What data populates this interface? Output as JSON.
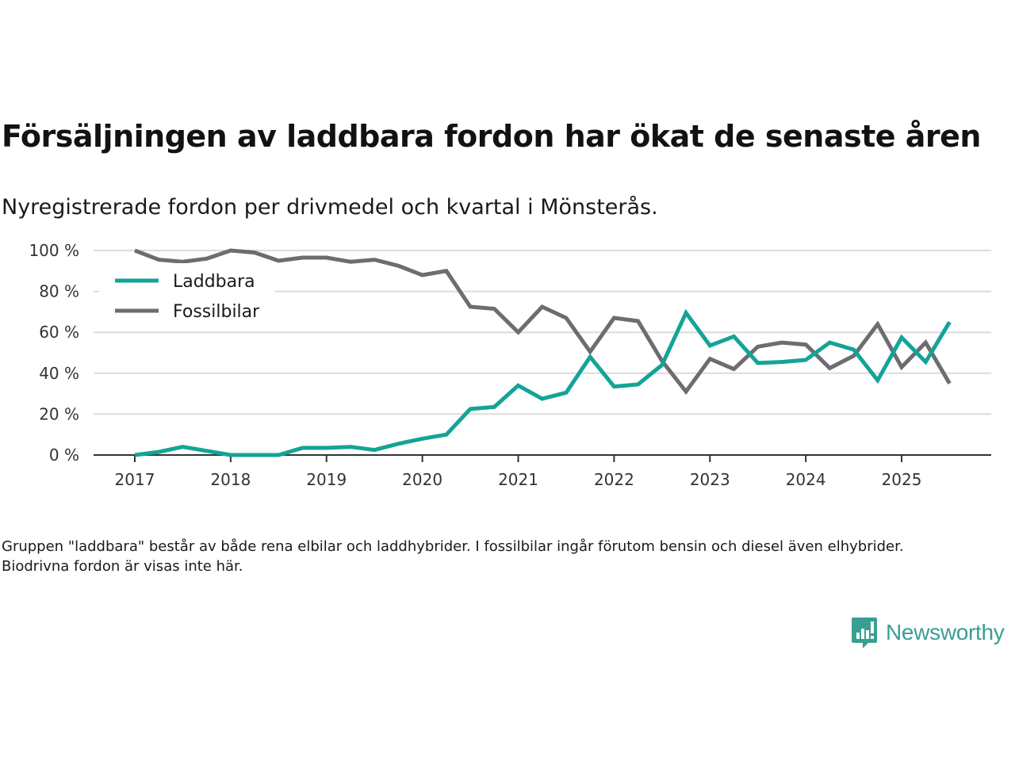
{
  "header": {
    "title": "Försäljningen av laddbara fordon har ökat de senaste åren",
    "subtitle": "Nyregistrerade fordon per drivmedel och kvartal i Mönsterås."
  },
  "footnote": "Gruppen \"laddbara\" består av både rena elbilar och laddhybrider. I fossilbilar ingår förutom bensin och diesel även elhybrider. Biodrivna fordon är visas inte här.",
  "logo": {
    "text": "Newsworthy",
    "color": "#3a9e92",
    "icon": "bar-chart-speech-bubble-icon"
  },
  "chart_data": {
    "type": "line",
    "title": "Försäljningen av laddbara fordon har ökat de senaste åren",
    "subtitle": "Nyregistrerade fordon per drivmedel och kvartal i Mönsterås.",
    "xlabel": "",
    "ylabel": "",
    "x": [
      "2017-Q1",
      "2017-Q2",
      "2017-Q3",
      "2017-Q4",
      "2018-Q1",
      "2018-Q2",
      "2018-Q3",
      "2018-Q4",
      "2019-Q1",
      "2019-Q2",
      "2019-Q3",
      "2019-Q4",
      "2020-Q1",
      "2020-Q2",
      "2020-Q3",
      "2020-Q4",
      "2021-Q1",
      "2021-Q2",
      "2021-Q3",
      "2021-Q4",
      "2022-Q1",
      "2022-Q2",
      "2022-Q3",
      "2022-Q4",
      "2023-Q1",
      "2023-Q2",
      "2023-Q3",
      "2023-Q4",
      "2024-Q1",
      "2024-Q2",
      "2024-Q3",
      "2024-Q4",
      "2025-Q1",
      "2025-Q2",
      "2025-Q3"
    ],
    "x_ticks": [
      "2017",
      "2018",
      "2019",
      "2020",
      "2021",
      "2022",
      "2023",
      "2024",
      "2025"
    ],
    "x_range": [
      "2016-Q3",
      "2026-Q2"
    ],
    "y_ticks": [
      "0 %",
      "20 %",
      "40 %",
      "60 %",
      "80 %",
      "100 %"
    ],
    "ylim": [
      0,
      100
    ],
    "grid": true,
    "legend_position": "top-left",
    "series": [
      {
        "name": "Laddbara",
        "color": "#13a497",
        "values": [
          0,
          1.5,
          4,
          2,
          0,
          0,
          0,
          3.5,
          3.5,
          4,
          2.5,
          5.5,
          8,
          10,
          22.5,
          23.5,
          34,
          27.5,
          30.5,
          48,
          33.5,
          34.5,
          44,
          69.5,
          53.5,
          58,
          45,
          45.5,
          46.5,
          55,
          51.5,
          36.5,
          57.5,
          45.5,
          65
        ]
      },
      {
        "name": "Fossilbilar",
        "color": "#6d6d71",
        "values": [
          100,
          95.5,
          94.5,
          96,
          100,
          99,
          95,
          96.5,
          96.5,
          94.5,
          95.5,
          92.5,
          88,
          90,
          72.5,
          71.5,
          60,
          72.5,
          67,
          50.5,
          67,
          65.5,
          46,
          31,
          47,
          42,
          53,
          55,
          54,
          42.5,
          48.5,
          64,
          43,
          55,
          35
        ]
      }
    ]
  }
}
